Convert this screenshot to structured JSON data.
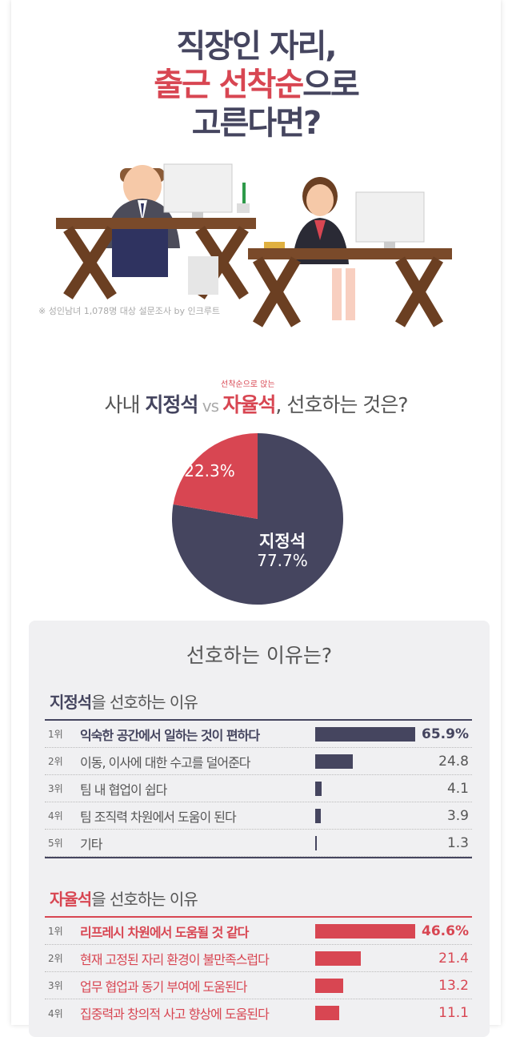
{
  "colors": {
    "navy": "#45455f",
    "red": "#d84652",
    "panel": "#f0f0f2"
  },
  "title": {
    "line1": "직장인 자리,",
    "line2_red": "출근 선착순",
    "line2_rest": "으로",
    "line3": "고른다면?"
  },
  "survey_note": "※ 성인남녀 1,078명 대상 설문조사 by 인크루트",
  "question": {
    "sub": "선착순으로 앉는",
    "prefix": "사내 ",
    "a": "지정석",
    "vs": " vs ",
    "b": "자율석",
    "suffix": ", 선호하는 것은?"
  },
  "chart_data": [
    {
      "type": "pie",
      "slices": [
        {
          "label": "지정석",
          "value": 77.7,
          "display": "77.7%",
          "color": "#45455f"
        },
        {
          "label": "자율석",
          "value": 22.3,
          "display": "22.3%",
          "color": "#d84652"
        }
      ]
    },
    {
      "type": "bar",
      "title_bold": "지정석",
      "title_rest": "을 선호하는 이유",
      "color": "#45455f",
      "unit": "%",
      "rows": [
        {
          "rank": "1위",
          "label": "익숙한 공간에서 일하는 것이 편하다",
          "value": 65.9,
          "display": "65.9%"
        },
        {
          "rank": "2위",
          "label": "이동, 이사에 대한 수고를 덜어준다",
          "value": 24.8,
          "display": "24.8"
        },
        {
          "rank": "3위",
          "label": "팀 내 협업이 쉽다",
          "value": 4.1,
          "display": "4.1"
        },
        {
          "rank": "4위",
          "label": "팀 조직력 차원에서 도움이 된다",
          "value": 3.9,
          "display": "3.9"
        },
        {
          "rank": "5위",
          "label": "기타",
          "value": 1.3,
          "display": "1.3"
        }
      ]
    },
    {
      "type": "bar",
      "title_bold": "자율석",
      "title_rest": "을 선호하는 이유",
      "color": "#d84652",
      "unit": "%",
      "rows": [
        {
          "rank": "1위",
          "label": "리프레시 차원에서 도움될 것 같다",
          "value": 46.6,
          "display": "46.6%"
        },
        {
          "rank": "2위",
          "label": "현재 고정된 자리 환경이 불만족스럽다",
          "value": 21.4,
          "display": "21.4"
        },
        {
          "rank": "3위",
          "label": "업무 협업과 동기 부여에 도움된다",
          "value": 13.2,
          "display": "13.2"
        },
        {
          "rank": "4위",
          "label": "집중력과 창의적 사고 향상에 도움된다",
          "value": 11.1,
          "display": "11.1"
        }
      ]
    }
  ],
  "reasons_title": "선호하는 이유는?"
}
